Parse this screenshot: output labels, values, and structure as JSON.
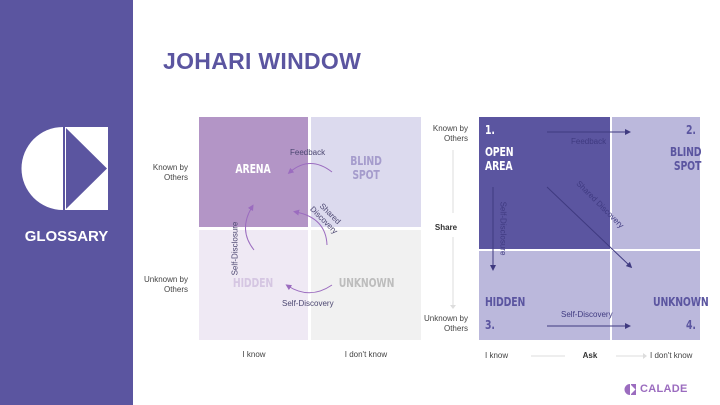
{
  "sidebar": {
    "label": "GLOSSARY",
    "logo": "calade-logo"
  },
  "title": "JOHARI WINDOW",
  "left": {
    "row_labels": [
      "Known by Others",
      "Unknown by Others"
    ],
    "col_labels": [
      "I know",
      "I don't know"
    ],
    "quadrants": [
      "ARENA",
      "BLIND SPOT",
      "HIDDEN",
      "UNKNOWN"
    ],
    "arrows": [
      "Feedback",
      "Shared Discovery",
      "Self-Disclosure",
      "Self-Discovery"
    ],
    "colors": {
      "arena": "#b395c6",
      "blind": "#dcdaee",
      "hidden": "#efe9f4",
      "unknown": "#f1f1f1"
    }
  },
  "right": {
    "row_labels": [
      "Known by Others",
      "Unknown by Others"
    ],
    "col_labels": [
      "I know",
      "I don't know"
    ],
    "axis_labels": {
      "vertical": "Share",
      "horizontal": "Ask"
    },
    "quadrants": [
      {
        "num": "1.",
        "name": "OPEN AREA"
      },
      {
        "num": "2.",
        "name": "BLIND SPOT"
      },
      {
        "num": "3.",
        "name": "HIDDEN"
      },
      {
        "num": "4.",
        "name": "UNKNOWN"
      }
    ],
    "arrows": [
      "Feedback",
      "Shared Discovery",
      "Self-Disclosure",
      "Self-Discovery"
    ],
    "colors": {
      "open": "#5b55a0",
      "other": "#bbb8dc"
    }
  },
  "brand": "CALADE"
}
